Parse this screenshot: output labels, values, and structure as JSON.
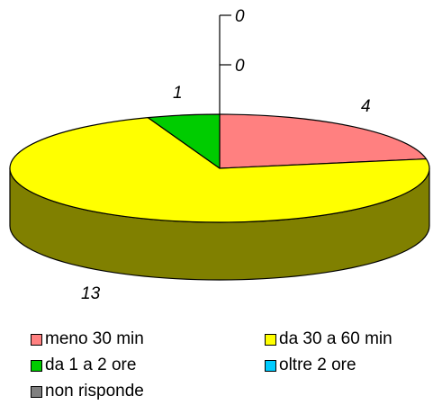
{
  "chart_data": {
    "type": "pie",
    "style": "3d",
    "categories": [
      "meno 30 min",
      "da 30 a 60 min",
      "da 1 a 2 ore",
      "oltre 2 ore",
      "non risponde"
    ],
    "values": [
      4,
      13,
      1,
      0,
      0
    ],
    "data_labels": [
      "4",
      "13",
      "1",
      "0",
      "0"
    ],
    "colors": [
      "#FF8080",
      "#FFFF00",
      "#00CC00",
      "#00CCFF",
      "#808080"
    ],
    "side_colors": [
      "#804040",
      "#808000",
      "#006600",
      "#006680",
      "#404040"
    ],
    "title": "",
    "legend_position": "bottom"
  }
}
